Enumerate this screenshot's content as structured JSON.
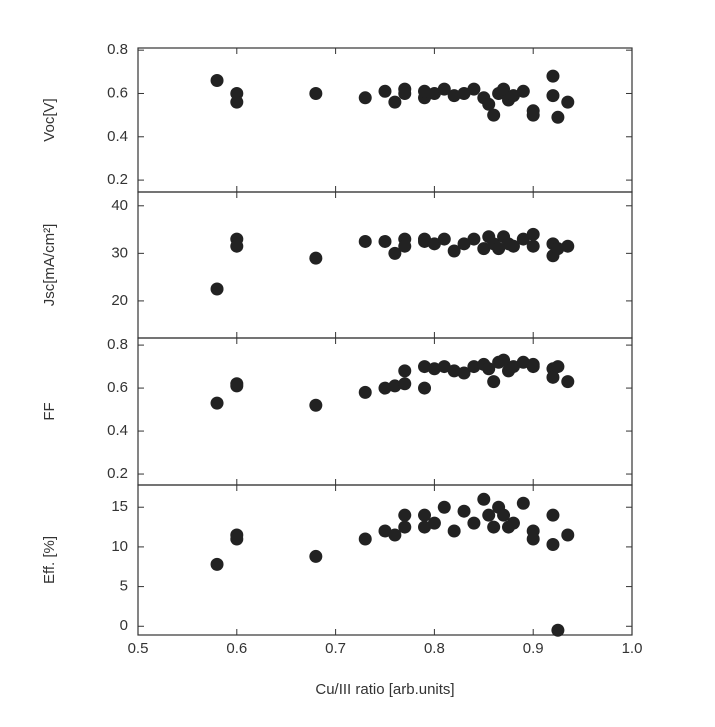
{
  "chart_data": [
    {
      "type": "scatter",
      "ylabel": "Voc[V]",
      "color": "#222222",
      "x": [
        0.58,
        0.6,
        0.6,
        0.68,
        0.73,
        0.75,
        0.76,
        0.77,
        0.77,
        0.79,
        0.79,
        0.8,
        0.81,
        0.82,
        0.83,
        0.84,
        0.85,
        0.855,
        0.86,
        0.865,
        0.87,
        0.875,
        0.88,
        0.89,
        0.9,
        0.9,
        0.92,
        0.92,
        0.925,
        0.935
      ],
      "values": [
        0.66,
        0.6,
        0.56,
        0.6,
        0.58,
        0.61,
        0.56,
        0.62,
        0.6,
        0.58,
        0.61,
        0.6,
        0.62,
        0.59,
        0.6,
        0.62,
        0.58,
        0.55,
        0.5,
        0.6,
        0.62,
        0.57,
        0.59,
        0.61,
        0.52,
        0.5,
        0.68,
        0.59,
        0.49,
        0.56
      ],
      "xlim": [
        0.5,
        1.0
      ],
      "xticks": [
        0.5,
        0.6,
        0.7,
        0.8,
        0.9,
        1.0
      ],
      "ylim": [
        0.145,
        0.81
      ],
      "yticks": [
        0.2,
        0.4,
        0.6,
        0.8
      ]
    },
    {
      "type": "scatter",
      "ylabel": "Jsc[mA/cm²]",
      "color": "#222222",
      "x": [
        0.58,
        0.6,
        0.6,
        0.68,
        0.73,
        0.75,
        0.76,
        0.77,
        0.77,
        0.79,
        0.79,
        0.8,
        0.81,
        0.82,
        0.83,
        0.84,
        0.85,
        0.855,
        0.86,
        0.865,
        0.87,
        0.875,
        0.88,
        0.89,
        0.9,
        0.9,
        0.92,
        0.92,
        0.925,
        0.935
      ],
      "values": [
        22.5,
        33,
        31.5,
        29,
        32.5,
        32.5,
        30,
        33,
        31.5,
        32.5,
        33,
        32,
        33,
        30.5,
        32,
        33,
        31,
        33.5,
        32,
        31,
        33.5,
        32,
        31.5,
        33,
        34,
        31.5,
        32,
        29.5,
        31,
        31.5
      ],
      "xlim": [
        0.5,
        1.0
      ],
      "xticks": [
        0.5,
        0.6,
        0.7,
        0.8,
        0.9,
        1.0
      ],
      "ylim": [
        12.2,
        42.9
      ],
      "yticks": [
        20,
        30,
        40
      ]
    },
    {
      "type": "scatter",
      "ylabel": "FF",
      "color": "#222222",
      "x": [
        0.58,
        0.6,
        0.6,
        0.68,
        0.73,
        0.75,
        0.76,
        0.77,
        0.77,
        0.79,
        0.79,
        0.8,
        0.81,
        0.82,
        0.83,
        0.84,
        0.85,
        0.855,
        0.86,
        0.865,
        0.87,
        0.875,
        0.88,
        0.89,
        0.9,
        0.9,
        0.92,
        0.92,
        0.925,
        0.935
      ],
      "values": [
        0.53,
        0.62,
        0.61,
        0.52,
        0.58,
        0.6,
        0.61,
        0.62,
        0.68,
        0.6,
        0.7,
        0.69,
        0.7,
        0.68,
        0.67,
        0.7,
        0.71,
        0.69,
        0.63,
        0.72,
        0.73,
        0.68,
        0.7,
        0.72,
        0.71,
        0.7,
        0.69,
        0.65,
        0.7,
        0.63
      ],
      "xlim": [
        0.5,
        1.0
      ],
      "xticks": [
        0.5,
        0.6,
        0.7,
        0.8,
        0.9,
        1.0
      ],
      "ylim": [
        0.149,
        0.833
      ],
      "yticks": [
        0.2,
        0.4,
        0.6,
        0.8
      ]
    },
    {
      "type": "scatter",
      "ylabel": "Eff. [%]",
      "xlabel": "Cu/III ratio [arb.units]",
      "color": "#222222",
      "x": [
        0.58,
        0.6,
        0.6,
        0.68,
        0.73,
        0.75,
        0.76,
        0.77,
        0.77,
        0.79,
        0.79,
        0.8,
        0.81,
        0.82,
        0.83,
        0.84,
        0.85,
        0.855,
        0.86,
        0.865,
        0.87,
        0.875,
        0.88,
        0.89,
        0.9,
        0.9,
        0.92,
        0.92,
        0.925,
        0.935
      ],
      "values": [
        7.8,
        11.5,
        11,
        8.8,
        11,
        12,
        11.5,
        12.5,
        14,
        12.5,
        14,
        13,
        15,
        12,
        14.5,
        13,
        16,
        14,
        12.5,
        15,
        14,
        12.5,
        13,
        15.5,
        12,
        11,
        14,
        10.3,
        -0.5,
        11.5
      ],
      "xlim": [
        0.5,
        1.0
      ],
      "xticks": [
        0.5,
        0.6,
        0.7,
        0.8,
        0.9,
        {
          "value": 1.0,
          "label": "1.0"
        }
      ],
      "ylim": [
        -1.1,
        17.8
      ],
      "yticks": [
        0,
        5,
        10,
        15
      ]
    }
  ]
}
